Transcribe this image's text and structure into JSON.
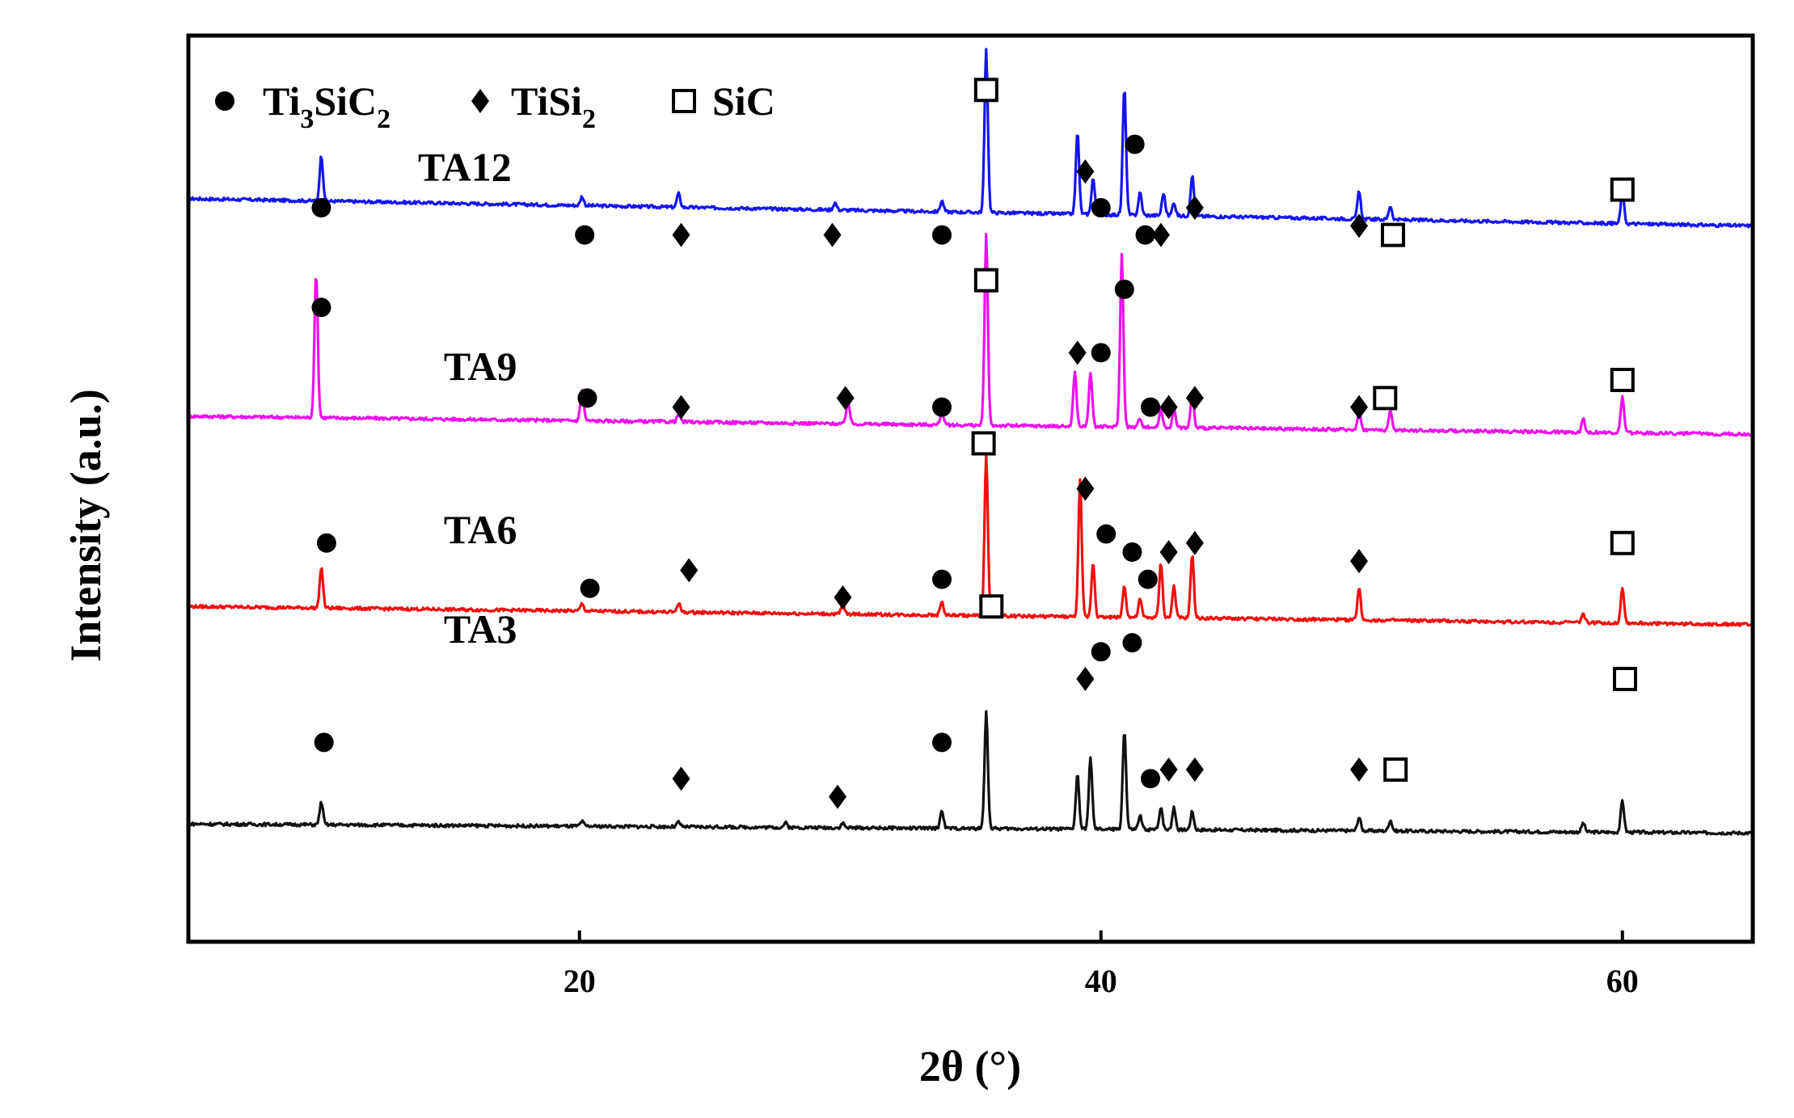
{
  "chart_data": {
    "type": "line",
    "title": "",
    "xlabel": "2θ  (°)",
    "ylabel": "Intensity (a.u.)",
    "xlim": [
      5,
      65
    ],
    "xticks": [
      20,
      40,
      60
    ],
    "xtick_labels": [
      "20",
      "40",
      "60"
    ],
    "ylim": [
      0,
      100
    ],
    "grid": false,
    "legend": {
      "position": "top-left",
      "entries": [
        {
          "marker": "circle",
          "label": "Ti",
          "sub": "3",
          "label2": "SiC",
          "sub2": "2",
          "phase": "Ti3SiC2"
        },
        {
          "marker": "diamond",
          "label": "TiSi",
          "sub": "2",
          "phase": "TiSi2"
        },
        {
          "marker": "square",
          "label": "SiC",
          "phase": "SiC"
        }
      ]
    },
    "series": [
      {
        "name": "TA12",
        "color": "#1515f0",
        "baseline_left": 82,
        "baseline_right": 79,
        "peaks": [
          {
            "x": 10.1,
            "h": 5
          },
          {
            "x": 20.1,
            "h": 1
          },
          {
            "x": 23.8,
            "h": 1.5
          },
          {
            "x": 29.8,
            "h": 0.8
          },
          {
            "x": 33.9,
            "h": 1.2
          },
          {
            "x": 35.6,
            "h": 18
          },
          {
            "x": 39.1,
            "h": 9
          },
          {
            "x": 39.7,
            "h": 4
          },
          {
            "x": 40.9,
            "h": 14
          },
          {
            "x": 41.5,
            "h": 2.5
          },
          {
            "x": 42.4,
            "h": 2.5
          },
          {
            "x": 42.8,
            "h": 1.5
          },
          {
            "x": 43.5,
            "h": 4.5
          },
          {
            "x": 49.9,
            "h": 3
          },
          {
            "x": 51.1,
            "h": 1.5
          },
          {
            "x": 60.0,
            "h": 3.5
          }
        ]
      },
      {
        "name": "TA9",
        "color": "#ee10ee",
        "baseline_left": 58,
        "baseline_right": 56,
        "peaks": [
          {
            "x": 9.9,
            "h": 16
          },
          {
            "x": 20.1,
            "h": 3.5
          },
          {
            "x": 23.8,
            "h": 0.8
          },
          {
            "x": 30.3,
            "h": 2.5
          },
          {
            "x": 33.9,
            "h": 1.5
          },
          {
            "x": 35.6,
            "h": 21
          },
          {
            "x": 39.0,
            "h": 6
          },
          {
            "x": 39.6,
            "h": 6
          },
          {
            "x": 40.8,
            "h": 19
          },
          {
            "x": 41.5,
            "h": 1
          },
          {
            "x": 42.3,
            "h": 2
          },
          {
            "x": 42.8,
            "h": 2
          },
          {
            "x": 43.5,
            "h": 3.5
          },
          {
            "x": 49.9,
            "h": 2
          },
          {
            "x": 51.1,
            "h": 2
          },
          {
            "x": 58.5,
            "h": 1.5
          },
          {
            "x": 60.0,
            "h": 4
          }
        ]
      },
      {
        "name": "TA6",
        "color": "#f01010",
        "baseline_left": 37,
        "baseline_right": 35,
        "peaks": [
          {
            "x": 10.1,
            "h": 4.5
          },
          {
            "x": 20.1,
            "h": 0.8
          },
          {
            "x": 23.8,
            "h": 1
          },
          {
            "x": 30.1,
            "h": 1
          },
          {
            "x": 33.9,
            "h": 1.5
          },
          {
            "x": 35.6,
            "h": 18
          },
          {
            "x": 39.2,
            "h": 15
          },
          {
            "x": 39.7,
            "h": 6
          },
          {
            "x": 40.9,
            "h": 3.5
          },
          {
            "x": 41.5,
            "h": 2
          },
          {
            "x": 42.3,
            "h": 6
          },
          {
            "x": 42.8,
            "h": 3.5
          },
          {
            "x": 43.5,
            "h": 7
          },
          {
            "x": 49.9,
            "h": 3.5
          },
          {
            "x": 58.5,
            "h": 1
          },
          {
            "x": 60.0,
            "h": 4
          }
        ]
      },
      {
        "name": "TA3",
        "color": "#111111",
        "baseline_left": 13,
        "baseline_right": 12,
        "peaks": [
          {
            "x": 10.1,
            "h": 2.5
          },
          {
            "x": 20.1,
            "h": 0.5
          },
          {
            "x": 23.8,
            "h": 0.5
          },
          {
            "x": 27.9,
            "h": 0.5
          },
          {
            "x": 30.1,
            "h": 0.5
          },
          {
            "x": 33.9,
            "h": 2
          },
          {
            "x": 35.6,
            "h": 13
          },
          {
            "x": 39.1,
            "h": 6
          },
          {
            "x": 39.6,
            "h": 8
          },
          {
            "x": 40.9,
            "h": 11
          },
          {
            "x": 41.5,
            "h": 1.5
          },
          {
            "x": 42.3,
            "h": 2.5
          },
          {
            "x": 42.8,
            "h": 2.5
          },
          {
            "x": 43.5,
            "h": 2
          },
          {
            "x": 49.9,
            "h": 1.5
          },
          {
            "x": 51.1,
            "h": 1.2
          },
          {
            "x": 58.5,
            "h": 1
          },
          {
            "x": 60.0,
            "h": 3.5
          }
        ]
      }
    ],
    "series_labels": [
      {
        "series": "TA12",
        "x": 15.6,
        "y": 84
      },
      {
        "series": "TA9",
        "x": 16.2,
        "y": 62
      },
      {
        "series": "TA6",
        "x": 16.2,
        "y": 44
      },
      {
        "series": "TA3",
        "x": 16.2,
        "y": 33
      }
    ],
    "markers": [
      {
        "type": "circle",
        "x": 10.1,
        "y": 81
      },
      {
        "type": "circle",
        "x": 20.2,
        "y": 78
      },
      {
        "type": "diamond",
        "x": 23.9,
        "y": 78
      },
      {
        "type": "diamond",
        "x": 29.7,
        "y": 78
      },
      {
        "type": "circle",
        "x": 33.9,
        "y": 78
      },
      {
        "type": "square",
        "x": 35.6,
        "y": 94
      },
      {
        "type": "diamond",
        "x": 39.4,
        "y": 85
      },
      {
        "type": "circle",
        "x": 40.0,
        "y": 81
      },
      {
        "type": "circle",
        "x": 41.3,
        "y": 88
      },
      {
        "type": "circle",
        "x": 41.7,
        "y": 78
      },
      {
        "type": "diamond",
        "x": 42.3,
        "y": 78
      },
      {
        "type": "diamond",
        "x": 43.6,
        "y": 81
      },
      {
        "type": "diamond",
        "x": 49.9,
        "y": 79
      },
      {
        "type": "square",
        "x": 51.2,
        "y": 78
      },
      {
        "type": "square",
        "x": 60.0,
        "y": 83
      },
      {
        "type": "circle",
        "x": 10.1,
        "y": 70
      },
      {
        "type": "circle",
        "x": 20.3,
        "y": 60
      },
      {
        "type": "diamond",
        "x": 23.9,
        "y": 59
      },
      {
        "type": "diamond",
        "x": 30.2,
        "y": 60
      },
      {
        "type": "circle",
        "x": 33.9,
        "y": 59
      },
      {
        "type": "square",
        "x": 35.6,
        "y": 73
      },
      {
        "type": "diamond",
        "x": 39.1,
        "y": 65
      },
      {
        "type": "circle",
        "x": 40.0,
        "y": 65
      },
      {
        "type": "circle",
        "x": 40.9,
        "y": 72
      },
      {
        "type": "circle",
        "x": 41.9,
        "y": 59
      },
      {
        "type": "diamond",
        "x": 42.6,
        "y": 59
      },
      {
        "type": "diamond",
        "x": 43.6,
        "y": 60
      },
      {
        "type": "diamond",
        "x": 49.9,
        "y": 59
      },
      {
        "type": "square",
        "x": 50.9,
        "y": 60
      },
      {
        "type": "square",
        "x": 60.0,
        "y": 62
      },
      {
        "type": "circle",
        "x": 10.3,
        "y": 44
      },
      {
        "type": "circle",
        "x": 20.4,
        "y": 39
      },
      {
        "type": "diamond",
        "x": 24.2,
        "y": 41
      },
      {
        "type": "diamond",
        "x": 30.1,
        "y": 38
      },
      {
        "type": "circle",
        "x": 33.9,
        "y": 40
      },
      {
        "type": "square",
        "x": 35.5,
        "y": 55
      },
      {
        "type": "diamond",
        "x": 39.4,
        "y": 50
      },
      {
        "type": "circle",
        "x": 40.2,
        "y": 45
      },
      {
        "type": "circle",
        "x": 41.2,
        "y": 43
      },
      {
        "type": "circle",
        "x": 41.8,
        "y": 40
      },
      {
        "type": "diamond",
        "x": 42.6,
        "y": 43
      },
      {
        "type": "diamond",
        "x": 43.6,
        "y": 44
      },
      {
        "type": "diamond",
        "x": 49.9,
        "y": 42
      },
      {
        "type": "square",
        "x": 60.0,
        "y": 44
      },
      {
        "type": "circle",
        "x": 10.2,
        "y": 22
      },
      {
        "type": "diamond",
        "x": 23.9,
        "y": 18
      },
      {
        "type": "diamond",
        "x": 29.9,
        "y": 16
      },
      {
        "type": "circle",
        "x": 33.9,
        "y": 22
      },
      {
        "type": "square",
        "x": 35.8,
        "y": 37
      },
      {
        "type": "diamond",
        "x": 39.4,
        "y": 29
      },
      {
        "type": "circle",
        "x": 40.0,
        "y": 32
      },
      {
        "type": "circle",
        "x": 41.2,
        "y": 33
      },
      {
        "type": "circle",
        "x": 41.9,
        "y": 18
      },
      {
        "type": "diamond",
        "x": 42.6,
        "y": 19
      },
      {
        "type": "diamond",
        "x": 43.6,
        "y": 19
      },
      {
        "type": "diamond",
        "x": 49.9,
        "y": 19
      },
      {
        "type": "square",
        "x": 51.3,
        "y": 19
      },
      {
        "type": "square",
        "x": 60.1,
        "y": 29
      }
    ]
  }
}
